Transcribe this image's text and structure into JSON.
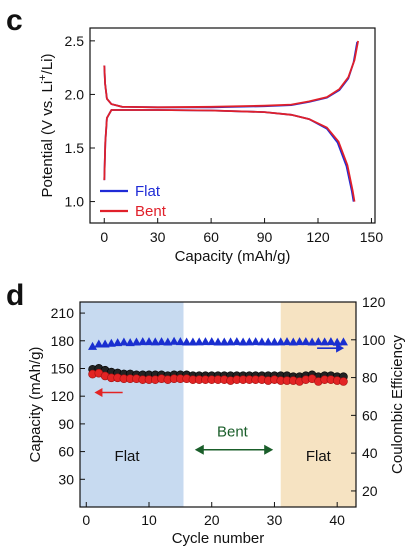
{
  "panels": {
    "c": {
      "letter": "c"
    },
    "d": {
      "letter": "d"
    }
  },
  "chart_data": [
    {
      "type": "line",
      "panel": "c",
      "xlabel": "Capacity (mAh/g)",
      "ylabel": "Potential (V vs. Li+/Li)",
      "ylabel_parts": {
        "pre": "Potential (V vs. Li",
        "sup": "+",
        "post": "/Li)"
      },
      "xlim": [
        -8,
        152
      ],
      "ylim": [
        0.8,
        2.62
      ],
      "xticks": [
        0,
        30,
        60,
        90,
        120,
        150
      ],
      "yticks": [
        1.0,
        1.5,
        2.0,
        2.5
      ],
      "ytick_labels": [
        "1.0",
        "1.5",
        "2.0",
        "2.5"
      ],
      "legend_placement": "bottom-left",
      "grid": false,
      "series": [
        {
          "name": "Flat",
          "color": "#1f2bd6",
          "curves": [
            [
              [
                0,
                2.27
              ],
              [
                0.5,
                2.1
              ],
              [
                1.5,
                1.96
              ],
              [
                4,
                1.91
              ],
              [
                10,
                1.885
              ],
              [
                30,
                1.88
              ],
              [
                60,
                1.88
              ],
              [
                90,
                1.89
              ],
              [
                105,
                1.9
              ],
              [
                115,
                1.93
              ],
              [
                125,
                1.97
              ],
              [
                132,
                2.04
              ],
              [
                137,
                2.15
              ],
              [
                140,
                2.3
              ],
              [
                142,
                2.49
              ]
            ],
            [
              [
                0,
                1.2
              ],
              [
                0.6,
                1.55
              ],
              [
                1.5,
                1.78
              ],
              [
                4,
                1.855
              ],
              [
                10,
                1.855
              ],
              [
                30,
                1.855
              ],
              [
                60,
                1.85
              ],
              [
                90,
                1.835
              ],
              [
                105,
                1.81
              ],
              [
                115,
                1.77
              ],
              [
                125,
                1.68
              ],
              [
                131,
                1.55
              ],
              [
                136,
                1.33
              ],
              [
                139,
                1.1
              ],
              [
                140,
                1.0
              ]
            ]
          ]
        },
        {
          "name": "Bent",
          "color": "#e0202a",
          "curves": [
            [
              [
                0,
                2.27
              ],
              [
                0.5,
                2.1
              ],
              [
                1.5,
                1.96
              ],
              [
                4,
                1.91
              ],
              [
                10,
                1.885
              ],
              [
                30,
                1.88
              ],
              [
                60,
                1.885
              ],
              [
                90,
                1.895
              ],
              [
                105,
                1.905
              ],
              [
                115,
                1.935
              ],
              [
                125,
                1.975
              ],
              [
                132,
                2.05
              ],
              [
                137,
                2.16
              ],
              [
                140.5,
                2.32
              ],
              [
                142.5,
                2.5
              ]
            ],
            [
              [
                0,
                1.2
              ],
              [
                0.6,
                1.55
              ],
              [
                1.5,
                1.78
              ],
              [
                4,
                1.855
              ],
              [
                10,
                1.855
              ],
              [
                30,
                1.855
              ],
              [
                60,
                1.85
              ],
              [
                90,
                1.835
              ],
              [
                105,
                1.81
              ],
              [
                115,
                1.77
              ],
              [
                125,
                1.69
              ],
              [
                131.5,
                1.56
              ],
              [
                136.5,
                1.34
              ],
              [
                139.5,
                1.1
              ],
              [
                140.5,
                1.0
              ]
            ]
          ]
        }
      ]
    },
    {
      "type": "scatter",
      "panel": "d",
      "xlabel": "Cycle number",
      "ylabel_left": "Capacity (mAh/g)",
      "ylabel_right": "Coulombic Efficiency",
      "xlim": [
        -1,
        43
      ],
      "ylim_left": [
        0,
        222
      ],
      "ylim_right": [
        11.5,
        120
      ],
      "xticks": [
        0,
        10,
        20,
        30,
        40
      ],
      "yticks_left": [
        30,
        60,
        90,
        120,
        150,
        180,
        210
      ],
      "yticks_right": [
        20,
        40,
        60,
        80,
        100,
        120
      ],
      "grid": false,
      "regions": [
        {
          "label": "Flat",
          "x_range": [
            -1,
            15.5
          ],
          "color": "#c7daf0"
        },
        {
          "label": "Bent",
          "x_range": [
            15.5,
            31
          ],
          "color": "#ffffff"
        },
        {
          "label": "Flat",
          "x_range": [
            31,
            43
          ],
          "color": "#f6e3c2"
        }
      ],
      "cycles": [
        1,
        2,
        3,
        4,
        5,
        6,
        7,
        8,
        9,
        10,
        11,
        12,
        13,
        14,
        15,
        16,
        17,
        18,
        19,
        20,
        21,
        22,
        23,
        24,
        25,
        26,
        27,
        28,
        29,
        30,
        31,
        32,
        33,
        34,
        35,
        36,
        37,
        38,
        39,
        40,
        41
      ],
      "series": [
        {
          "name": "Capacity (black)",
          "axis": "left",
          "marker": "circle",
          "color": "#222222",
          "values": [
            147,
            148,
            146,
            144,
            143,
            142,
            142,
            141,
            141,
            141,
            141,
            141,
            140,
            141,
            141,
            141,
            140,
            140,
            140,
            140,
            140,
            140,
            140,
            140,
            140,
            140,
            140,
            140,
            140,
            140,
            140,
            140,
            139,
            139,
            140,
            141,
            139,
            140,
            140,
            139,
            139
          ]
        },
        {
          "name": "Capacity (red)",
          "axis": "left",
          "marker": "circle",
          "color": "#e32424",
          "values": [
            145,
            146,
            143,
            141,
            141,
            140,
            140,
            140,
            139,
            139,
            139,
            140,
            139,
            140,
            140,
            140,
            139,
            139,
            139,
            139,
            139,
            139,
            138,
            139,
            139,
            139,
            139,
            139,
            138,
            139,
            138,
            138,
            138,
            137,
            139,
            140,
            137,
            139,
            139,
            138,
            137
          ]
        },
        {
          "name": "Coulombic Efficiency",
          "axis": "right",
          "marker": "triangle",
          "color": "#1a2fd0",
          "values": [
            96.5,
            97.8,
            97.8,
            98.2,
            98.5,
            98.8,
            98.5,
            98.8,
            99,
            99,
            98.9,
            99,
            98.8,
            99.2,
            99,
            98.8,
            98.8,
            98.9,
            99,
            99,
            98.8,
            98.8,
            98.9,
            99,
            98.8,
            98.9,
            99,
            98.9,
            98.8,
            98.8,
            98.9,
            99,
            98.8,
            99,
            99,
            98.8,
            99,
            98.9,
            99,
            98.7,
            98.9
          ]
        }
      ],
      "annotations": {
        "left_arrow_color": "#e32424",
        "right_arrow_color": "#1a2fd0",
        "bent_arrow_color": "#1a5e2a"
      }
    }
  ]
}
